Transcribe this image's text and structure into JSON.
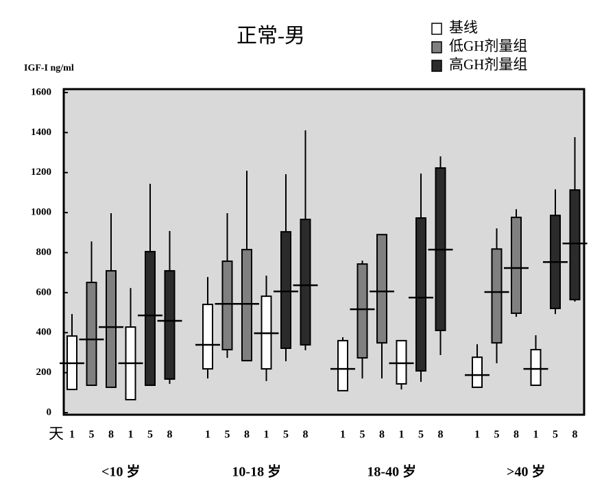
{
  "chart_data": {
    "type": "box",
    "title": "正常-男",
    "y_label": "IGF-I ng/ml",
    "x_prefix": "天",
    "ylim": [
      0,
      1600
    ],
    "yticks": [
      0,
      200,
      400,
      600,
      800,
      1000,
      1200,
      1400,
      1600
    ],
    "legend": [
      {
        "name": "基线",
        "color": "#ffffff"
      },
      {
        "name": "低GH剂量组",
        "color": "#808080"
      },
      {
        "name": "高GH剂量组",
        "color": "#2b2b2b"
      }
    ],
    "groups": [
      {
        "name": "<10 岁",
        "boxes": [
          {
            "day": "1",
            "color": "#ffffff",
            "q1": 116,
            "median": 247,
            "q3": 383,
            "high": 493
          },
          {
            "day": "5",
            "color": "#808080",
            "q1": 137,
            "median": 366,
            "q3": 651,
            "high": 856
          },
          {
            "day": "8",
            "color": "#808080",
            "q1": 127,
            "median": 428,
            "q3": 709,
            "high": 997
          },
          {
            "day": "1",
            "color": "#ffffff",
            "q1": 65,
            "median": 247,
            "q3": 428,
            "high": 623
          },
          {
            "day": "5",
            "color": "#2b2b2b",
            "q1": 137,
            "median": 486,
            "q3": 805,
            "high": 1144
          },
          {
            "day": "8",
            "color": "#2b2b2b",
            "low": 144,
            "q1": 168,
            "median": 459,
            "q3": 709,
            "high": 908
          }
        ]
      },
      {
        "name": "10-18 岁",
        "boxes": [
          {
            "day": "1",
            "color": "#ffffff",
            "low": 171,
            "q1": 219,
            "median": 339,
            "q3": 541,
            "high": 678
          },
          {
            "day": "5",
            "color": "#808080",
            "low": 274,
            "q1": 315,
            "median": 544,
            "q3": 757,
            "high": 997
          },
          {
            "day": "8",
            "color": "#808080",
            "q1": 260,
            "median": 544,
            "q3": 815,
            "high": 1209
          },
          {
            "day": "1",
            "color": "#ffffff",
            "low": 158,
            "q1": 219,
            "median": 397,
            "q3": 582,
            "high": 685
          },
          {
            "day": "5",
            "color": "#2b2b2b",
            "low": 257,
            "q1": 322,
            "median": 606,
            "q3": 904,
            "high": 1192
          },
          {
            "day": "8",
            "color": "#2b2b2b",
            "low": 312,
            "q1": 339,
            "median": 637,
            "q3": 966,
            "high": 1411
          }
        ]
      },
      {
        "name": "18-40 岁",
        "boxes": [
          {
            "day": "1",
            "color": "#ffffff",
            "q1": 110,
            "median": 219,
            "q3": 360,
            "high": 377
          },
          {
            "day": "5",
            "color": "#808080",
            "low": 171,
            "q1": 274,
            "median": 517,
            "q3": 743,
            "high": 760
          },
          {
            "day": "8",
            "color": "#808080",
            "low": 171,
            "q1": 349,
            "median": 606,
            "q3": 890
          },
          {
            "day": "1",
            "color": "#ffffff",
            "low": 116,
            "q1": 144,
            "median": 247,
            "q3": 360
          },
          {
            "day": "5",
            "color": "#2b2b2b",
            "low": 154,
            "q1": 209,
            "median": 575,
            "q3": 973,
            "high": 1195
          },
          {
            "day": "8",
            "color": "#2b2b2b",
            "low": 288,
            "q1": 411,
            "median": 815,
            "q3": 1223,
            "high": 1281
          }
        ]
      },
      {
        "name": ">40 岁",
        "boxes": [
          {
            "day": "1",
            "color": "#ffffff",
            "q1": 127,
            "median": 188,
            "q3": 277,
            "high": 342
          },
          {
            "day": "5",
            "color": "#808080",
            "low": 247,
            "q1": 349,
            "median": 603,
            "q3": 818,
            "high": 921
          },
          {
            "day": "8",
            "color": "#808080",
            "low": 479,
            "q1": 497,
            "median": 723,
            "q3": 976,
            "high": 1017
          },
          {
            "day": "1",
            "color": "#ffffff",
            "q1": 137,
            "median": 219,
            "q3": 315,
            "high": 387
          },
          {
            "day": "5",
            "color": "#2b2b2b",
            "low": 493,
            "q1": 521,
            "median": 753,
            "q3": 986,
            "high": 1116
          },
          {
            "day": "8",
            "color": "#2b2b2b",
            "low": 555,
            "q1": 565,
            "median": 846,
            "q3": 1113,
            "high": 1377
          }
        ]
      }
    ]
  }
}
